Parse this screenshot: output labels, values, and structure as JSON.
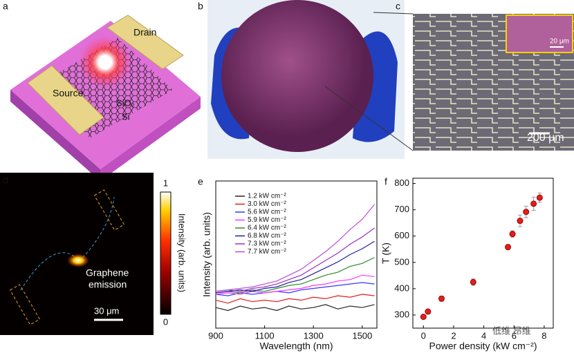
{
  "panels": {
    "labels": [
      "a",
      "b",
      "c",
      "d",
      "e",
      "f"
    ]
  },
  "panel_a": {
    "drain": "Drain",
    "source": "Source",
    "oxide": "SiO₂",
    "si": "Si"
  },
  "panel_c": {
    "inset_scale": "20 μm",
    "scale": "200 μm"
  },
  "panel_d": {
    "annotation": [
      "Graphene",
      "emission"
    ],
    "scale": "30 μm",
    "colorbar_label": "Intensity (arb. units)",
    "colorbar_ticks": [
      0,
      1
    ]
  },
  "watermark": "低维 昂维",
  "chart_data": [
    {
      "type": "line",
      "xlabel": "Wavelength (nm)",
      "ylabel": "Intensity (arb. units)",
      "x": [
        900,
        950,
        1000,
        1050,
        1100,
        1150,
        1200,
        1250,
        1300,
        1350,
        1400,
        1450,
        1500,
        1550
      ],
      "xlim": [
        900,
        1560
      ],
      "xticks": [
        900,
        1100,
        1300,
        1500
      ],
      "ylim": [
        0,
        10
      ],
      "series": [
        {
          "name": "1.2 kW cm⁻²",
          "color": "#222222",
          "values": [
            1.4,
            1.2,
            1.5,
            1.3,
            1.4,
            1.2,
            1.5,
            1.3,
            1.4,
            1.6,
            1.3,
            1.5,
            1.4,
            1.6
          ]
        },
        {
          "name": "3.0 kW cm⁻²",
          "color": "#e41a1c",
          "values": [
            1.9,
            1.7,
            2.0,
            1.8,
            1.9,
            1.8,
            2.0,
            1.9,
            2.1,
            2.0,
            2.2,
            2.1,
            2.3,
            2.2
          ]
        },
        {
          "name": "5.6 kW cm⁻²",
          "color": "#3535ff",
          "values": [
            2.3,
            2.2,
            2.4,
            2.3,
            2.4,
            2.5,
            2.4,
            2.6,
            2.7,
            2.8,
            2.9,
            3.0,
            3.1,
            3.0
          ]
        },
        {
          "name": "5.9 kW cm⁻²",
          "color": "#ff33ff",
          "values": [
            2.3,
            2.4,
            2.3,
            2.5,
            2.4,
            2.5,
            2.6,
            2.7,
            2.9,
            3.0,
            3.2,
            3.3,
            3.6,
            3.5
          ]
        },
        {
          "name": "6.4 kW cm⁻²",
          "color": "#2e8b2e",
          "values": [
            2.4,
            2.5,
            2.4,
            2.6,
            2.5,
            2.7,
            2.9,
            3.0,
            3.3,
            3.6,
            3.8,
            4.2,
            4.4,
            4.8
          ]
        },
        {
          "name": "6.8 kW cm⁻²",
          "color": "#1f1f9f",
          "values": [
            2.4,
            2.5,
            2.6,
            2.5,
            2.7,
            2.8,
            3.1,
            3.3,
            3.7,
            4.1,
            4.5,
            5.0,
            5.4,
            5.9
          ]
        },
        {
          "name": "7.3 kW cm⁻²",
          "color": "#9b30c0",
          "values": [
            2.5,
            2.6,
            2.5,
            2.7,
            2.8,
            3.0,
            3.3,
            3.6,
            4.1,
            4.6,
            5.1,
            5.7,
            6.2,
            6.8
          ]
        },
        {
          "name": "7.7 kW cm⁻²",
          "color": "#b84fd8",
          "values": [
            2.5,
            2.6,
            2.7,
            2.8,
            3.0,
            3.2,
            3.6,
            4.0,
            4.6,
            5.2,
            5.9,
            6.7,
            7.4,
            8.4
          ]
        }
      ]
    },
    {
      "type": "scatter",
      "xlabel": "Power density (kW cm⁻²)",
      "ylabel": "T (K)",
      "color": "#e02020",
      "x": [
        0,
        0.3,
        1.2,
        3.3,
        5.6,
        5.9,
        6.4,
        6.8,
        7.3,
        7.7
      ],
      "values": [
        293,
        313,
        362,
        425,
        558,
        608,
        658,
        692,
        723,
        746
      ],
      "errors": [
        5,
        5,
        10,
        12,
        10,
        12,
        22,
        22,
        25,
        18
      ],
      "xlim": [
        -0.7,
        8.6
      ],
      "xticks": [
        0,
        2,
        4,
        6,
        8
      ],
      "ylim": [
        250,
        820
      ],
      "yticks": [
        300,
        400,
        500,
        600,
        700,
        800
      ]
    }
  ]
}
